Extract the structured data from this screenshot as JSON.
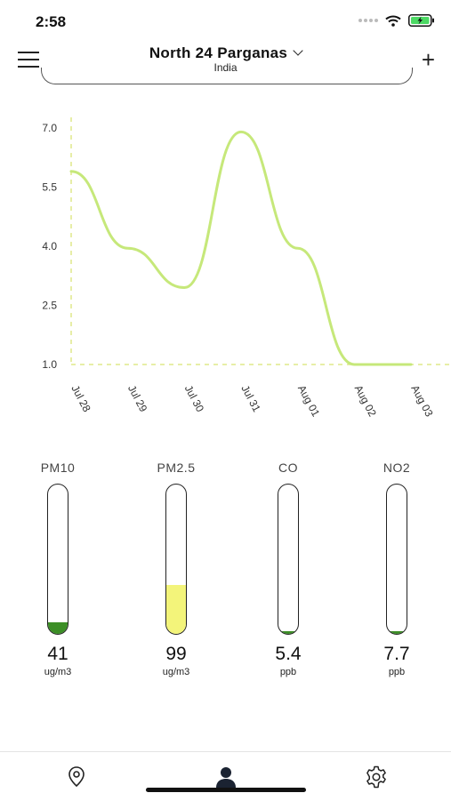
{
  "status": {
    "time": "2:58"
  },
  "header": {
    "location": "North 24 Parganas",
    "country": "India"
  },
  "chart_data": {
    "type": "line",
    "categories": [
      "Jul 28",
      "Jul 29",
      "Jul 30",
      "Jul 31",
      "Aug 01",
      "Aug 02",
      "Aug 03"
    ],
    "values": [
      5.9,
      3.95,
      2.95,
      6.9,
      3.95,
      1.0,
      1.0
    ],
    "yticks": [
      "7.0",
      "5.5",
      "4.0",
      "2.5",
      "1.0"
    ],
    "ylim": [
      1.0,
      7.0
    ],
    "line_color": "#c6e87a",
    "axis_color": "#dfe98a"
  },
  "gauges": [
    {
      "label": "PM10",
      "value": "41",
      "unit": "ug/m3",
      "level": 0.08,
      "color": "#3c8e26"
    },
    {
      "label": "PM2.5",
      "value": "99",
      "unit": "ug/m3",
      "level": 0.33,
      "color": "#f3f47a"
    },
    {
      "label": "CO",
      "value": "5.4",
      "unit": "ppb",
      "level": 0.02,
      "color": "#3c8e26"
    },
    {
      "label": "NO2",
      "value": "7.7",
      "unit": "ppb",
      "level": 0.02,
      "color": "#3c8e26"
    }
  ],
  "nav": {
    "items": [
      "location-pin-icon",
      "person-icon",
      "settings-gear-icon"
    ],
    "active": "person-icon"
  }
}
